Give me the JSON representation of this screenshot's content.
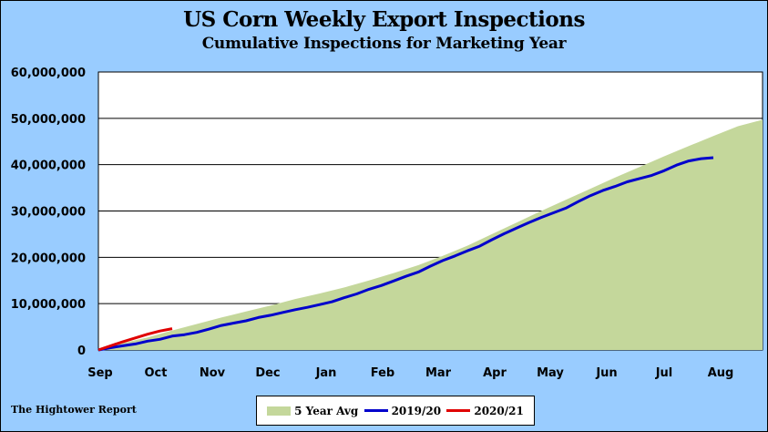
{
  "chart_data": {
    "type": "area",
    "title": "US Corn Weekly Export Inspections",
    "subtitle": "Cumulative Inspections for Marketing Year",
    "source": "The Hightower Report",
    "xlabels": [
      "Sep",
      "Oct",
      "Nov",
      "Dec",
      "Jan",
      "Feb",
      "Mar",
      "Apr",
      "May",
      "Jun",
      "Jul",
      "Aug"
    ],
    "ylim": [
      0,
      60000000
    ],
    "yticks": [
      "0",
      "10,000,000",
      "20,000,000",
      "30,000,000",
      "40,000,000",
      "50,000,000",
      "60,000,000"
    ],
    "ytick_values": [
      0,
      10000000,
      20000000,
      30000000,
      40000000,
      50000000,
      60000000
    ],
    "grid": true,
    "legend_position": "bottom",
    "x_weeks": 52,
    "series": [
      {
        "name": "5 Year Avg",
        "kind": "area",
        "color": "#c4d79b",
        "points": [
          [
            0,
            0
          ],
          [
            2,
            1500000
          ],
          [
            4,
            2700000
          ],
          [
            6,
            4200000
          ],
          [
            8,
            5600000
          ],
          [
            10,
            7000000
          ],
          [
            12,
            8300000
          ],
          [
            14,
            9600000
          ],
          [
            16,
            11000000
          ],
          [
            18,
            12200000
          ],
          [
            20,
            13500000
          ],
          [
            22,
            15000000
          ],
          [
            24,
            16600000
          ],
          [
            26,
            18300000
          ],
          [
            28,
            20300000
          ],
          [
            30,
            22500000
          ],
          [
            32,
            25000000
          ],
          [
            34,
            27500000
          ],
          [
            36,
            30000000
          ],
          [
            38,
            32400000
          ],
          [
            40,
            34800000
          ],
          [
            42,
            37200000
          ],
          [
            44,
            39500000
          ],
          [
            46,
            41800000
          ],
          [
            48,
            44000000
          ],
          [
            50,
            46200000
          ],
          [
            52,
            48300000
          ],
          [
            54,
            49700000
          ]
        ]
      },
      {
        "name": "2019/20",
        "kind": "line",
        "color": "#0000cc",
        "points": [
          [
            0,
            0
          ],
          [
            1,
            500000
          ],
          [
            2,
            900000
          ],
          [
            3,
            1300000
          ],
          [
            4,
            1900000
          ],
          [
            5,
            2300000
          ],
          [
            6,
            3000000
          ],
          [
            7,
            3300000
          ],
          [
            8,
            3800000
          ],
          [
            9,
            4500000
          ],
          [
            10,
            5300000
          ],
          [
            11,
            5800000
          ],
          [
            12,
            6300000
          ],
          [
            13,
            7000000
          ],
          [
            14,
            7500000
          ],
          [
            15,
            8100000
          ],
          [
            16,
            8700000
          ],
          [
            17,
            9200000
          ],
          [
            18,
            9800000
          ],
          [
            19,
            10400000
          ],
          [
            20,
            11300000
          ],
          [
            21,
            12100000
          ],
          [
            22,
            13100000
          ],
          [
            23,
            13900000
          ],
          [
            24,
            14900000
          ],
          [
            25,
            15900000
          ],
          [
            26,
            16800000
          ],
          [
            27,
            18100000
          ],
          [
            28,
            19300000
          ],
          [
            29,
            20300000
          ],
          [
            30,
            21400000
          ],
          [
            31,
            22400000
          ],
          [
            32,
            23800000
          ],
          [
            33,
            25100000
          ],
          [
            34,
            26300000
          ],
          [
            35,
            27500000
          ],
          [
            36,
            28600000
          ],
          [
            37,
            29600000
          ],
          [
            38,
            30600000
          ],
          [
            39,
            32000000
          ],
          [
            40,
            33300000
          ],
          [
            41,
            34400000
          ],
          [
            42,
            35300000
          ],
          [
            43,
            36300000
          ],
          [
            44,
            37000000
          ],
          [
            45,
            37700000
          ],
          [
            46,
            38700000
          ],
          [
            47,
            39900000
          ],
          [
            48,
            40800000
          ],
          [
            49,
            41300000
          ],
          [
            50,
            41500000
          ]
        ]
      },
      {
        "name": "2020/21",
        "kind": "line",
        "color": "#e00000",
        "points": [
          [
            0,
            0
          ],
          [
            1,
            900000
          ],
          [
            2,
            1800000
          ],
          [
            3,
            2600000
          ],
          [
            4,
            3400000
          ],
          [
            5,
            4100000
          ],
          [
            6,
            4600000
          ]
        ]
      }
    ]
  }
}
